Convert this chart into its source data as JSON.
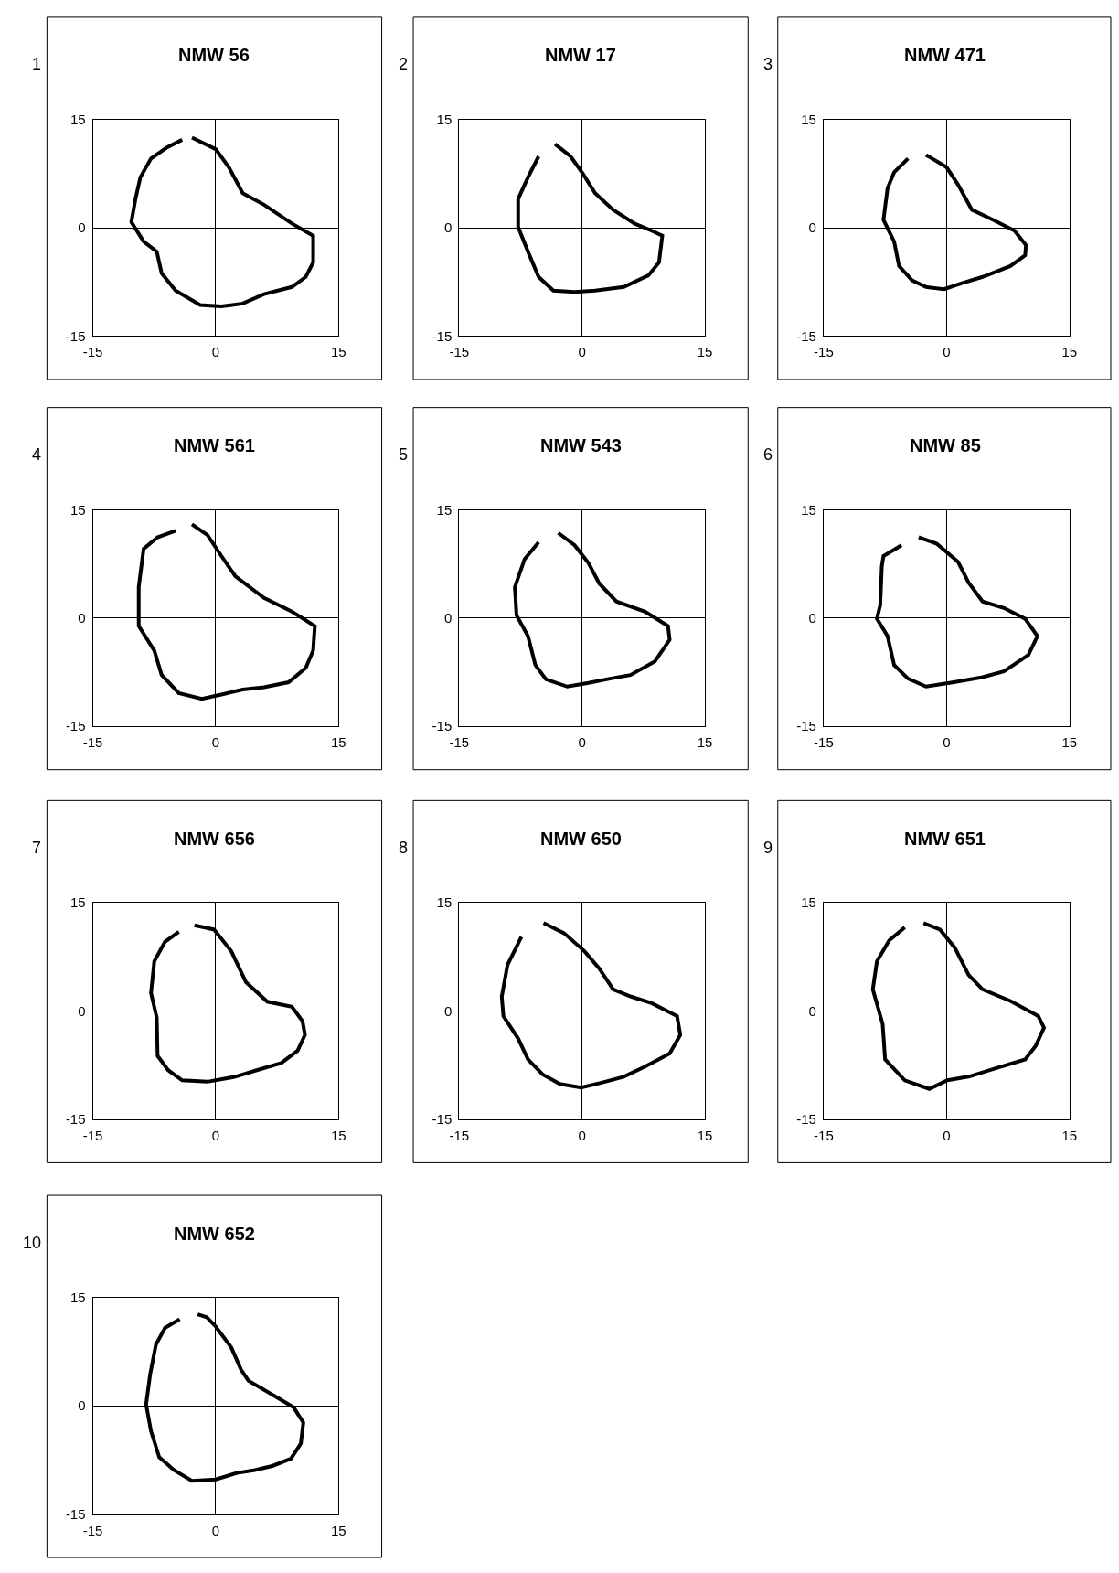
{
  "chart_data": [
    {
      "type": "line",
      "title": "NMW 56",
      "annotations": [
        "1"
      ],
      "xlim": [
        -15,
        15
      ],
      "ylim": [
        -15,
        15
      ],
      "xticks": [
        -15,
        0,
        15
      ],
      "yticks": [
        -15,
        0,
        15
      ],
      "grid": true,
      "marker": "none",
      "x": [
        -2.9,
        0,
        1.6,
        3.3,
        5.9,
        9.3,
        11.9,
        11.9,
        11.0,
        9.3,
        5.9,
        3.3,
        0.7,
        -1.9,
        -4.9,
        -6.6,
        -7.2,
        -8.8,
        -10.3,
        -9.8,
        -9.2,
        -7.9,
        -6.0,
        -4.1
      ],
      "series": [
        {
          "color": "#000000",
          "values": [
            12.5,
            10.9,
            8.4,
            4.8,
            3.2,
            0.6,
            -1.1,
            -4.8,
            -6.8,
            -8.2,
            -9.2,
            -10.5,
            -10.9,
            -10.7,
            -8.7,
            -6.3,
            -3.3,
            -1.9,
            0.8,
            4.0,
            7.0,
            9.6,
            11.1,
            12.2
          ]
        }
      ]
    },
    {
      "type": "line",
      "title": "NMW 17",
      "annotations": [
        "2"
      ],
      "xlim": [
        -15,
        15
      ],
      "ylim": [
        -15,
        15
      ],
      "xticks": [
        -15,
        0,
        15
      ],
      "yticks": [
        -15,
        0,
        15
      ],
      "grid": true,
      "marker": "none",
      "series": [
        {
          "color": "#000000",
          "x": [
            -3.3,
            -1.4,
            0.1,
            1.6,
            3.8,
            6.4,
            8.5,
            9.8,
            9.4,
            8.1,
            5.1,
            1.6,
            -0.9,
            -3.5,
            -5.3,
            -6.6,
            -7.8,
            -7.8,
            -6.6,
            -5.3
          ],
          "values": [
            11.6,
            9.9,
            7.5,
            4.8,
            2.5,
            0.6,
            -0.4,
            -1.1,
            -4.8,
            -6.6,
            -8.2,
            -8.7,
            -8.9,
            -8.7,
            -6.8,
            -3.3,
            0.1,
            4.0,
            7.0,
            9.9
          ]
        }
      ]
    },
    {
      "type": "line",
      "title": "NMW 471",
      "annotations": [
        "3"
      ],
      "xlim": [
        -15,
        15
      ],
      "ylim": [
        -15,
        15
      ],
      "xticks": [
        -15,
        0,
        15
      ],
      "yticks": [
        -15,
        0,
        15
      ],
      "grid": true,
      "marker": "none",
      "series": [
        {
          "color": "#000000",
          "x": [
            -2.5,
            0,
            1.4,
            3.1,
            5.7,
            8.3,
            9.7,
            9.6,
            7.8,
            4.4,
            1.8,
            -0.3,
            -2.5,
            -4.2,
            -5.8,
            -6.4,
            -7.7,
            -7.2,
            -6.4,
            -4.7
          ],
          "values": [
            10.1,
            8.4,
            6.0,
            2.5,
            1.1,
            -0.4,
            -2.4,
            -3.8,
            -5.3,
            -6.8,
            -7.7,
            -8.5,
            -8.2,
            -7.3,
            -5.3,
            -1.9,
            1.1,
            5.5,
            7.7,
            9.6
          ]
        }
      ]
    },
    {
      "type": "line",
      "title": "NMW 561",
      "annotations": [
        "4"
      ],
      "xlim": [
        -15,
        15
      ],
      "ylim": [
        -15,
        15
      ],
      "xticks": [
        -15,
        0,
        15
      ],
      "yticks": [
        -15,
        0,
        15
      ],
      "grid": true,
      "marker": "none",
      "series": [
        {
          "color": "#000000",
          "x": [
            -2.9,
            -1.0,
            0.7,
            2.4,
            5.9,
            9.3,
            12.1,
            11.9,
            11.0,
            8.9,
            5.9,
            3.3,
            0.7,
            -1.7,
            -4.5,
            -6.6,
            -7.5,
            -9.4,
            -9.4,
            -8.8,
            -7.1,
            -4.9
          ],
          "values": [
            13.0,
            11.5,
            8.6,
            5.8,
            2.8,
            0.9,
            -1.1,
            -4.5,
            -6.9,
            -8.9,
            -9.6,
            -9.9,
            -10.6,
            -11.2,
            -10.4,
            -7.9,
            -4.5,
            -1.1,
            4.3,
            9.6,
            11.2,
            12.1
          ]
        }
      ]
    },
    {
      "type": "line",
      "title": "NMW 543",
      "annotations": [
        "5"
      ],
      "xlim": [
        -15,
        15
      ],
      "ylim": [
        -15,
        15
      ],
      "xticks": [
        -15,
        0,
        15
      ],
      "yticks": [
        -15,
        0,
        15
      ],
      "grid": true,
      "marker": "none",
      "series": [
        {
          "color": "#000000",
          "x": [
            -2.9,
            -0.9,
            0.8,
            2.1,
            4.2,
            7.7,
            10.5,
            10.7,
            8.9,
            5.9,
            3.4,
            0.8,
            -1.8,
            -4.4,
            -5.7,
            -6.6,
            -8.0,
            -8.2,
            -7.0,
            -5.3
          ],
          "values": [
            11.8,
            10.1,
            7.6,
            4.8,
            2.3,
            0.9,
            -1.1,
            -3.0,
            -6.0,
            -7.9,
            -8.4,
            -9.0,
            -9.5,
            -8.5,
            -6.5,
            -2.5,
            0.4,
            4.3,
            8.2,
            10.5
          ]
        }
      ]
    },
    {
      "type": "line",
      "title": "NMW 85",
      "annotations": [
        "6"
      ],
      "xlim": [
        -15,
        15
      ],
      "ylim": [
        -15,
        15
      ],
      "xticks": [
        -15,
        0,
        15
      ],
      "yticks": [
        -15,
        0,
        15
      ],
      "grid": true,
      "marker": "none",
      "series": [
        {
          "color": "#000000",
          "x": [
            -3.4,
            -1.2,
            1.4,
            2.7,
            4.4,
            7.0,
            9.6,
            11.1,
            10.0,
            7.0,
            4.4,
            0.9,
            -2.5,
            -4.7,
            -6.4,
            -7.2,
            -8.5,
            -8.1,
            -7.9,
            -7.7,
            -5.5
          ],
          "values": [
            11.2,
            10.3,
            7.8,
            4.9,
            2.3,
            1.4,
            -0.1,
            -2.5,
            -5.1,
            -7.4,
            -8.2,
            -8.9,
            -9.5,
            -8.4,
            -6.5,
            -2.5,
            -0.1,
            1.8,
            7.2,
            8.6,
            10.1
          ]
        }
      ]
    },
    {
      "type": "line",
      "title": "NMW 656",
      "annotations": [
        "7"
      ],
      "xlim": [
        -15,
        15
      ],
      "ylim": [
        -15,
        15
      ],
      "xticks": [
        -15,
        0,
        15
      ],
      "yticks": [
        -15,
        0,
        15
      ],
      "grid": true,
      "marker": "none",
      "series": [
        {
          "color": "#000000",
          "x": [
            -2.6,
            -0.2,
            1.9,
            3.7,
            6.3,
            9.3,
            10.6,
            10.9,
            10.0,
            8.0,
            5.0,
            2.4,
            -1.0,
            -4.1,
            -5.8,
            -7.1,
            -7.2,
            -7.9,
            -7.5,
            -6.2,
            -4.5
          ],
          "values": [
            11.9,
            11.3,
            8.3,
            4.0,
            1.3,
            0.6,
            -1.4,
            -3.3,
            -5.5,
            -7.2,
            -8.2,
            -9.1,
            -9.8,
            -9.6,
            -8.2,
            -6.2,
            -0.9,
            2.5,
            6.9,
            9.6,
            11.0
          ]
        }
      ]
    },
    {
      "type": "line",
      "title": "NMW 650",
      "annotations": [
        "8"
      ],
      "xlim": [
        -15,
        15
      ],
      "ylim": [
        -15,
        15
      ],
      "xticks": [
        -15,
        0,
        15
      ],
      "yticks": [
        -15,
        0,
        15
      ],
      "grid": true,
      "marker": "none",
      "series": [
        {
          "color": "#000000",
          "x": [
            -4.7,
            -2.2,
            0.3,
            2.1,
            3.8,
            6.0,
            8.5,
            11.6,
            12.0,
            10.7,
            7.7,
            5.1,
            2.5,
            -0.1,
            -2.7,
            -4.8,
            -6.6,
            -7.8,
            -9.6,
            -9.8,
            -9.1,
            -7.4
          ],
          "values": [
            12.2,
            10.8,
            8.3,
            5.9,
            3.0,
            2.0,
            1.1,
            -0.7,
            -3.3,
            -5.9,
            -7.7,
            -9.1,
            -9.9,
            -10.6,
            -10.1,
            -8.8,
            -6.7,
            -3.8,
            -0.7,
            2.0,
            6.4,
            10.3
          ]
        }
      ]
    },
    {
      "type": "line",
      "title": "NMW 651",
      "annotations": [
        "9"
      ],
      "xlim": [
        -15,
        15
      ],
      "ylim": [
        -15,
        15
      ],
      "xticks": [
        -15,
        0,
        15
      ],
      "yticks": [
        -15,
        0,
        15
      ],
      "grid": true,
      "marker": "none",
      "series": [
        {
          "color": "#000000",
          "x": [
            -2.8,
            -0.8,
            1.0,
            2.7,
            4.4,
            7.8,
            11.2,
            11.9,
            10.9,
            9.6,
            6.1,
            2.7,
            0.1,
            -2.1,
            -5.1,
            -7.5,
            -7.8,
            -9.0,
            -8.5,
            -7.0,
            -5.1
          ],
          "values": [
            12.2,
            11.3,
            8.8,
            5.0,
            3.0,
            1.4,
            -0.7,
            -2.3,
            -4.8,
            -6.7,
            -7.9,
            -9.1,
            -9.6,
            -10.8,
            -9.6,
            -6.7,
            -1.8,
            3.0,
            6.9,
            9.8,
            11.6
          ]
        }
      ]
    },
    {
      "type": "line",
      "title": "NMW 652",
      "annotations": [
        "10"
      ],
      "xlim": [
        -15,
        15
      ],
      "ylim": [
        -15,
        15
      ],
      "xticks": [
        -15,
        0,
        15
      ],
      "yticks": [
        -15,
        0,
        15
      ],
      "grid": true,
      "marker": "none",
      "series": [
        {
          "color": "#000000",
          "x": [
            -2.2,
            -1.1,
            0.0,
            1.9,
            3.1,
            4.0,
            7.0,
            9.5,
            10.7,
            10.4,
            9.2,
            7.0,
            4.8,
            2.6,
            0.0,
            -2.9,
            -5.1,
            -6.9,
            -7.9,
            -8.5,
            -8.0,
            -7.3,
            -6.2,
            -4.4
          ],
          "values": [
            12.7,
            12.3,
            11.0,
            8.1,
            5.0,
            3.5,
            1.5,
            -0.2,
            -2.3,
            -5.2,
            -7.3,
            -8.3,
            -8.9,
            -9.3,
            -10.2,
            -10.4,
            -8.9,
            -7.1,
            -3.5,
            0.2,
            4.4,
            8.5,
            10.8,
            12.0
          ]
        }
      ]
    }
  ]
}
